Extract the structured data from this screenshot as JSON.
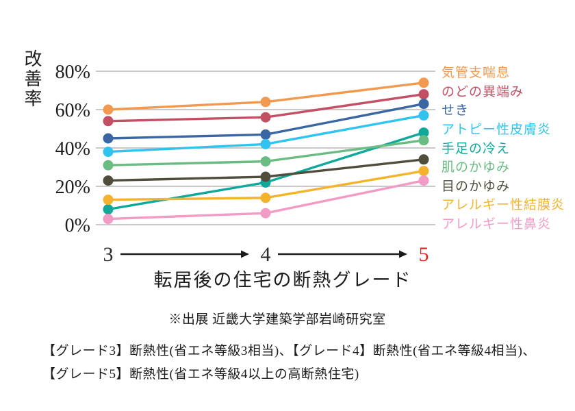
{
  "page": {
    "background": "#ffffff",
    "text_color": "#1d1d1d"
  },
  "chart_data": {
    "type": "line",
    "categories": [
      "3",
      "4",
      "5"
    ],
    "category_colors": [
      "#2a2a2a",
      "#2a2a2a",
      "#d8281e"
    ],
    "series": [
      {
        "name": "気管支喘息",
        "color": "#f2994f",
        "values": [
          60,
          64,
          74
        ]
      },
      {
        "name": "のどの異端み",
        "color": "#c24f63",
        "values": [
          54,
          56,
          68
        ]
      },
      {
        "name": "せき",
        "color": "#3a67a3",
        "values": [
          45,
          47,
          63
        ]
      },
      {
        "name": "アトピー性皮膚炎",
        "color": "#30c3f0",
        "values": [
          38,
          42,
          57
        ]
      },
      {
        "name": "手足の冷え",
        "color": "#0fa89b",
        "values": [
          8,
          22,
          48
        ]
      },
      {
        "name": "肌のかゆみ",
        "color": "#6abc83",
        "values": [
          31,
          33,
          44
        ]
      },
      {
        "name": "目のかゆみ",
        "color": "#514d3c",
        "values": [
          23,
          25,
          34
        ]
      },
      {
        "name": "アレルギー性結膜炎",
        "color": "#f4b32c",
        "values": [
          13,
          14,
          28
        ]
      },
      {
        "name": "アレルギー性鼻炎",
        "color": "#f19bc6",
        "values": [
          3,
          6,
          23
        ]
      }
    ],
    "xlabel": "転居後の住宅の断熱グレード",
    "ylabel": "改善率",
    "ytick_labels": [
      "80%",
      "60%",
      "40%",
      "20%",
      "0%"
    ],
    "ytick_values": [
      80,
      60,
      40,
      20,
      0
    ],
    "ylim": [
      0,
      80
    ],
    "grid": true,
    "grid_color": "#c9c9c9",
    "legend_position": "right",
    "x_axis_style": "arrows-between-categories",
    "arrow_color": "#1d1d1d"
  },
  "texts": {
    "source": "※出展 近畿大学建築学部岩崎研究室",
    "note_line1": "【グレード3】断熱性(省エネ等級3相当)、【グレード4】断熱性(省エネ等級4相当)、",
    "note_line2": "【グレード5】断熱性(省エネ等級4以上の高断熱住宅)"
  }
}
